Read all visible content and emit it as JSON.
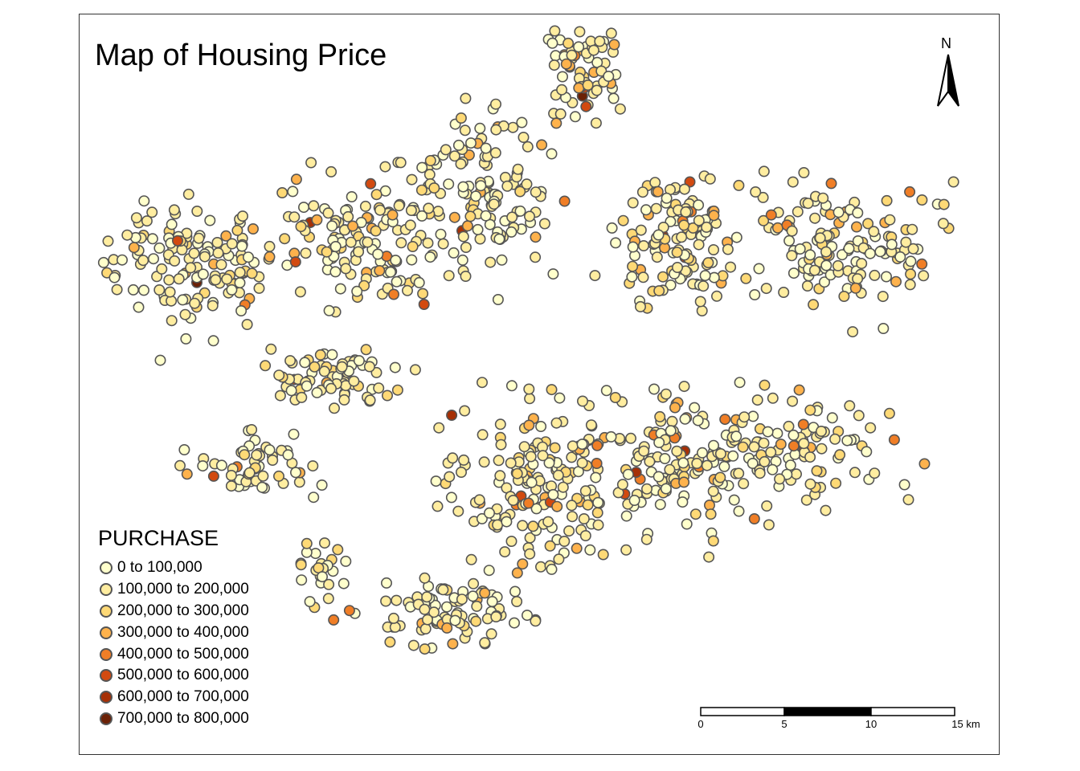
{
  "map": {
    "title": "Map of Housing Price",
    "north_label": "N",
    "legend": {
      "title": "PURCHASE",
      "items": [
        {
          "label": "0 to 100,000",
          "color": "#FFFFCC"
        },
        {
          "label": "100,000 to 200,000",
          "color": "#FFEDA0"
        },
        {
          "label": "200,000 to 300,000",
          "color": "#FED976"
        },
        {
          "label": "300,000 to 400,000",
          "color": "#FEB24C"
        },
        {
          "label": "400,000 to 500,000",
          "color": "#F07E26"
        },
        {
          "label": "500,000 to 600,000",
          "color": "#D24A10"
        },
        {
          "label": "600,000 to 700,000",
          "color": "#A63006"
        },
        {
          "label": "700,000 to 800,000",
          "color": "#6B2106"
        }
      ]
    },
    "scale_bar": {
      "ticks": [
        "0",
        "5",
        "10",
        "15 km"
      ]
    },
    "point_outline_color": "#555555",
    "point_count": 1400
  }
}
